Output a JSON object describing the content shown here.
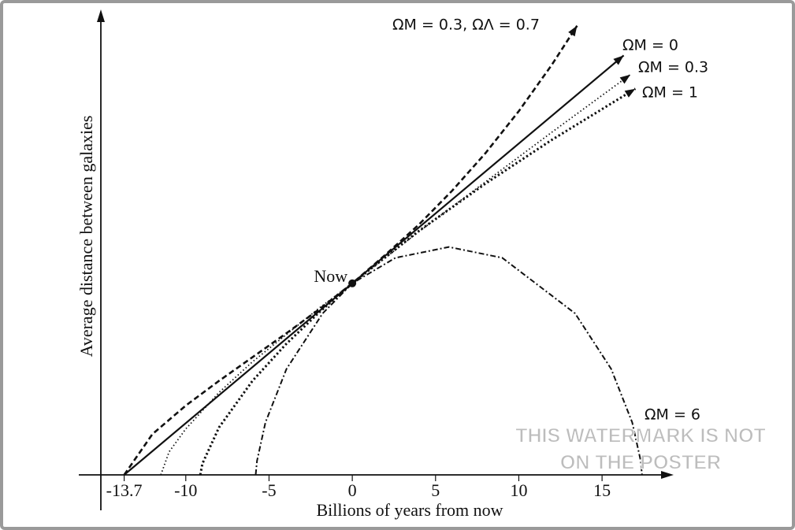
{
  "chart_data": {
    "type": "line",
    "xlabel": "Billions of years from now",
    "ylabel": "Average distance between galaxies",
    "xlim": [
      -15.1,
      19.3
    ],
    "ylim": [
      0,
      2.43
    ],
    "xticks": [
      -13.7,
      -10,
      -5,
      0,
      5,
      10,
      15
    ],
    "grid": false,
    "series": [
      {
        "name": "ΩM = 0.3, ΩΛ = 0.7",
        "color": "#111111",
        "dash": "dashed",
        "arrow": true,
        "x": [
          -13.7,
          -12,
          -10,
          -8,
          -6,
          -4,
          -2,
          0,
          2,
          4,
          6,
          8,
          10,
          12,
          13.5
        ],
        "values": [
          0,
          0.213,
          0.362,
          0.491,
          0.614,
          0.737,
          0.864,
          1,
          1.15,
          1.307,
          1.484,
          1.68,
          1.899,
          2.143,
          2.345
        ]
      },
      {
        "name": "ΩM = 0",
        "color": "#111111",
        "dash": "solid",
        "arrow": true,
        "x": [
          -13.7,
          16.3
        ],
        "values": [
          0,
          2.19
        ]
      },
      {
        "name": "ΩM = 0.3",
        "color": "#111111",
        "dash": "dotted-fine",
        "arrow": true,
        "x": [
          -11.5,
          -11,
          -10,
          -8,
          -6,
          -4,
          -2,
          0,
          4,
          8,
          12,
          16.7
        ],
        "values": [
          0,
          0.12,
          0.24,
          0.43,
          0.59,
          0.73,
          0.87,
          1,
          1.27,
          1.53,
          1.79,
          2.09
        ]
      },
      {
        "name": "ΩM = 1",
        "color": "#111111",
        "dash": "dotted",
        "arrow": true,
        "x": [
          -9.13,
          -9,
          -8,
          -6,
          -4,
          -2,
          0,
          4,
          8,
          12,
          17
        ],
        "values": [
          0,
          0.059,
          0.248,
          0.49,
          0.681,
          0.848,
          1,
          1.274,
          1.521,
          1.75,
          2.016
        ]
      },
      {
        "name": "ΩM = 6",
        "color": "#111111",
        "dash": "dash-dot",
        "arrow": false,
        "x": [
          -5.8,
          -5.72,
          -5.215,
          -3.95,
          -1.78,
          0,
          2.59,
          5.8,
          9.01,
          13.38,
          15.55,
          16.81,
          17.32,
          17.4
        ],
        "values": [
          0,
          0.073,
          0.274,
          0.553,
          0.843,
          1,
          1.133,
          1.19,
          1.133,
          0.843,
          0.553,
          0.274,
          0.073,
          0
        ]
      }
    ],
    "annotations": [
      {
        "text": "Now",
        "x": 0,
        "y": 1
      }
    ],
    "watermark": [
      "THIS WATERMARK IS NOT",
      "ON THE POSTER"
    ]
  }
}
